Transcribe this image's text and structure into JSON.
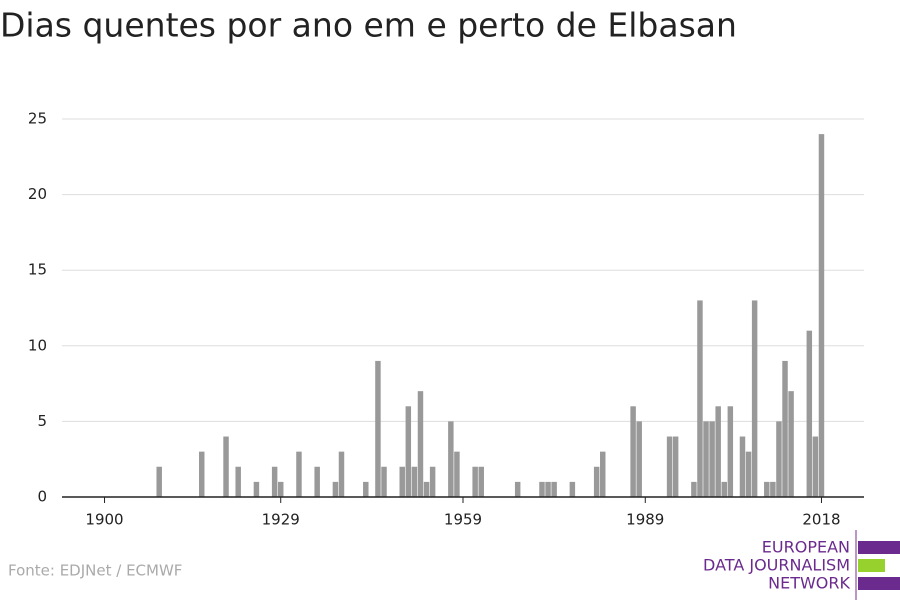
{
  "chart_data": {
    "type": "bar",
    "title": "Dias quentes por ano em e perto de Elbasan",
    "x": [
      1909,
      1916,
      1920,
      1922,
      1925,
      1928,
      1929,
      1932,
      1935,
      1938,
      1939,
      1943,
      1945,
      1946,
      1949,
      1950,
      1951,
      1952,
      1953,
      1954,
      1957,
      1958,
      1961,
      1962,
      1968,
      1972,
      1973,
      1974,
      1977,
      1981,
      1982,
      1987,
      1988,
      1993,
      1994,
      1997,
      1998,
      1999,
      2000,
      2001,
      2002,
      2003,
      2005,
      2006,
      2007,
      2009,
      2010,
      2011,
      2012,
      2013,
      2016,
      2017,
      2018
    ],
    "values": [
      2,
      3,
      4,
      2,
      1,
      2,
      1,
      3,
      2,
      1,
      3,
      1,
      9,
      2,
      2,
      6,
      2,
      7,
      1,
      2,
      5,
      3,
      2,
      2,
      1,
      1,
      1,
      1,
      1,
      2,
      3,
      6,
      5,
      4,
      4,
      1,
      13,
      5,
      5,
      6,
      1,
      6,
      4,
      3,
      13,
      1,
      1,
      5,
      9,
      7,
      11,
      4,
      24
    ],
    "color": "#999999",
    "xlim": [
      1893,
      2025
    ],
    "xticks": [
      1900,
      1929,
      1959,
      1989,
      2018
    ],
    "ylim": [
      0,
      25
    ],
    "yticks": [
      0,
      5,
      10,
      15,
      20,
      25
    ],
    "grid": true,
    "source": "Fonte: EDJNet / ECMWF",
    "logo": [
      "EUROPEAN",
      "DATA JOURNALISM",
      "NETWORK"
    ]
  }
}
